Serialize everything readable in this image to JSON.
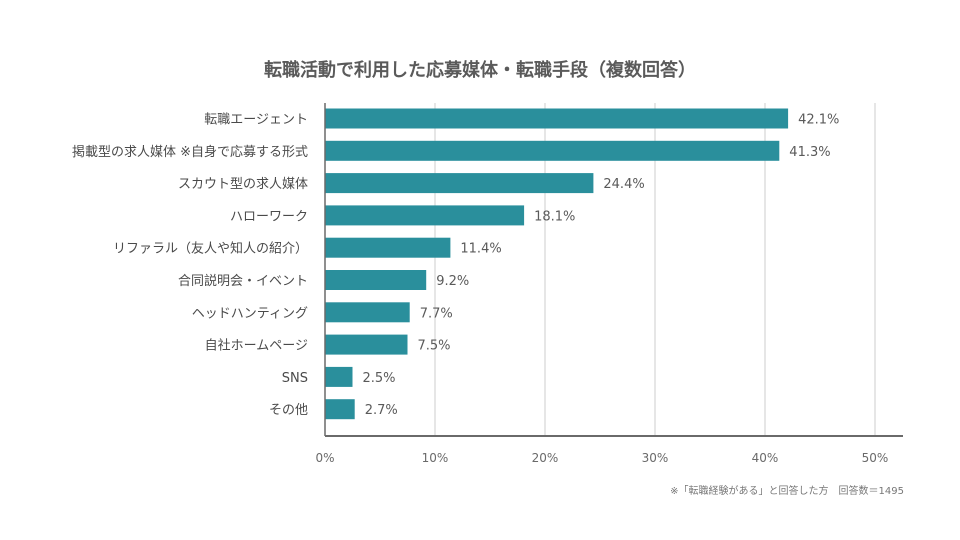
{
  "chart_data": {
    "type": "bar",
    "orientation": "horizontal",
    "title": "転職活動で利用した応募媒体・転職手段（複数回答）",
    "categories": [
      "転職エージェント",
      "掲載型の求人媒体 ※自身で応募する形式",
      "スカウト型の求人媒体",
      "ハローワーク",
      "リファラル（友人や知人の紹介）",
      "合同説明会・イベント",
      "ヘッドハンティング",
      "自社ホームページ",
      "SNS",
      "その他"
    ],
    "values": [
      42.1,
      41.3,
      24.4,
      18.1,
      11.4,
      9.2,
      7.7,
      7.5,
      2.5,
      2.7
    ],
    "value_labels": [
      "42.1%",
      "41.3%",
      "24.4%",
      "18.1%",
      "11.4%",
      "9.2%",
      "7.7%",
      "7.5%",
      "2.5%",
      "2.7%"
    ],
    "xlim": [
      0,
      50
    ],
    "x_ticks": [
      0,
      10,
      20,
      30,
      40,
      50
    ],
    "x_tick_labels": [
      "0%",
      "10%",
      "20%",
      "30%",
      "40%",
      "50%"
    ],
    "grid": true,
    "bar_color": "#2a8f9c",
    "note": "※「転職経験がある」と回答した方　回答数＝1495"
  }
}
